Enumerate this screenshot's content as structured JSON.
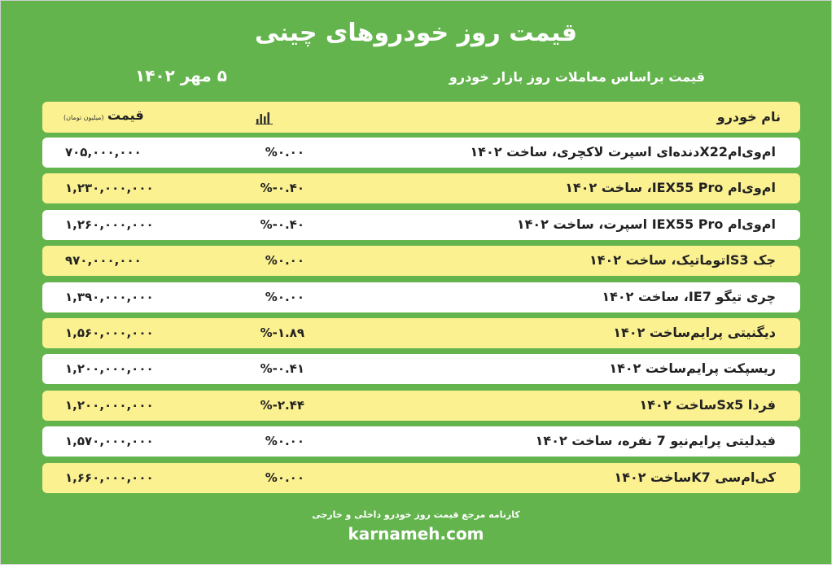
{
  "title": "قیمت روز خودروهای چینی",
  "subtitle": "قیمت براساس معاملات روز بازار خودرو",
  "date": "۵ مهر ۱۴۰۲",
  "table": {
    "header": {
      "name": "نام خودرو",
      "price": "قیمت",
      "unit": "(میلیون تومان)",
      "chart_icon": "bar-chart-icon"
    },
    "rows": [
      {
        "car": "ام‌وی‌امX22دنده‌ای اسپرت لاکچری، ساخت ۱۴۰۲",
        "change": "%۰.۰۰",
        "price": "۷۰۵,۰۰۰,۰۰۰"
      },
      {
        "car": "ام‌وی‌ام IEX55 Pro، ساخت ۱۴۰۲",
        "change": "%-۰.۴۰",
        "price": "۱,۲۳۰,۰۰۰,۰۰۰"
      },
      {
        "car": "ام‌وی‌ام IEX55 Pro اسپرت، ساخت ۱۴۰۲",
        "change": "%-۰.۴۰",
        "price": "۱,۲۶۰,۰۰۰,۰۰۰"
      },
      {
        "car": "جک S3اتوماتیک، ساخت ۱۴۰۲",
        "change": "%۰.۰۰",
        "price": "۹۷۰,۰۰۰,۰۰۰"
      },
      {
        "car": "چری تیگو IE7، ساخت ۱۴۰۲",
        "change": "%۰.۰۰",
        "price": "۱,۳۹۰,۰۰۰,۰۰۰"
      },
      {
        "car": "دیگنیتی پرایم‌ساخت ۱۴۰۲",
        "change": "%-۱.۸۹",
        "price": "۱,۵۶۰,۰۰۰,۰۰۰"
      },
      {
        "car": "ریسپکت پرایم‌ساخت ۱۴۰۲",
        "change": "%-۰.۴۱",
        "price": "۱,۲۰۰,۰۰۰,۰۰۰"
      },
      {
        "car": "فردا Sx5ساخت ۱۴۰۲",
        "change": "%-۲.۴۴",
        "price": "۱,۲۰۰,۰۰۰,۰۰۰"
      },
      {
        "car": "فیدلیتی پرایم‌نیو 7 نفره، ساخت ۱۴۰۲",
        "change": "%۰.۰۰",
        "price": "۱,۵۷۰,۰۰۰,۰۰۰"
      },
      {
        "car": "کی‌ام‌سی K7ساخت ۱۴۰۲",
        "change": "%۰.۰۰",
        "price": "۱,۶۶۰,۰۰۰,۰۰۰"
      }
    ]
  },
  "footer": {
    "tagline": "کارنامه مرجع قیمت روز خودرو داخلی و خارجی",
    "site": "karnameh.com"
  },
  "colors": {
    "background": "#64b44e",
    "row_highlight": "#fbf190",
    "row_plain": "#ffffff",
    "text": "#222222"
  }
}
